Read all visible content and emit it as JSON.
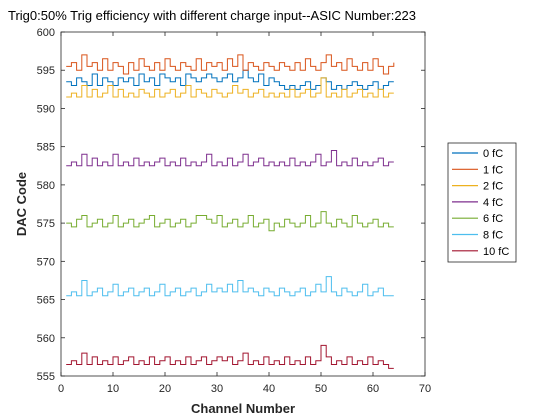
{
  "chart_data": {
    "type": "line",
    "title": "Trig0:50% Trig efficiency with different charge input--ASIC Number:223",
    "xlabel": "Channel Number",
    "ylabel": "DAC Code",
    "xlim": [
      0,
      70
    ],
    "ylim": [
      555,
      600
    ],
    "xticks": [
      "0",
      "10",
      "20",
      "30",
      "40",
      "50",
      "60",
      "70"
    ],
    "yticks": [
      "555",
      "560",
      "565",
      "570",
      "575",
      "580",
      "585",
      "590",
      "595",
      "600"
    ],
    "step": true,
    "channels": 64,
    "legend_position": "right",
    "series": [
      {
        "name": "0 fC",
        "color": "#0072BD",
        "values": [
          593.5,
          593,
          594,
          593.5,
          593,
          594.5,
          593,
          594,
          593.5,
          593,
          594,
          593.5,
          594,
          593,
          594.5,
          593.5,
          594,
          593,
          594.5,
          594,
          593.5,
          594,
          593,
          594.5,
          594,
          593.5,
          594,
          594.5,
          594,
          593.5,
          594,
          594.5,
          593.5,
          594,
          595,
          594,
          593.5,
          594.5,
          593,
          594,
          593.5,
          593,
          592.5,
          593,
          592.5,
          593,
          593.5,
          592.5,
          593,
          594,
          593.5,
          592.5,
          593,
          592.5,
          593,
          593.5,
          593,
          592.5,
          593,
          593.5,
          592.5,
          593,
          593.5,
          593.5
        ]
      },
      {
        "name": "1 fC",
        "color": "#D95319",
        "values": [
          595.5,
          596,
          595,
          597,
          595.5,
          596,
          595,
          596.5,
          595,
          596,
          595.5,
          594.5,
          596,
          595,
          596.5,
          595.5,
          595,
          596,
          595,
          596.5,
          595.5,
          595,
          596,
          595.5,
          595,
          596.5,
          595,
          596,
          595.5,
          596,
          595,
          596.5,
          595.5,
          597,
          595,
          596,
          595.5,
          595,
          596,
          595.5,
          595,
          596,
          595.5,
          595,
          596,
          595,
          596.5,
          595.5,
          595,
          596,
          597,
          595.5,
          596,
          595,
          596.5,
          595.5,
          595,
          596,
          595,
          596.5,
          595.5,
          594.5,
          595.5,
          596
        ]
      },
      {
        "name": "2 fC",
        "color": "#EDB120",
        "values": [
          591.5,
          592,
          591.5,
          593,
          591.5,
          592.5,
          591.5,
          592,
          593,
          591.5,
          592.5,
          591.5,
          592,
          591.5,
          592.5,
          592,
          591.5,
          592.5,
          591.5,
          592,
          592.5,
          591.5,
          592,
          593,
          591.5,
          592.5,
          592,
          591.5,
          592.5,
          592,
          591.5,
          592,
          593,
          592,
          592.5,
          591.5,
          592,
          592.5,
          591.5,
          592,
          591.5,
          592,
          591.5,
          592.5,
          591.5,
          592,
          592.5,
          591.5,
          592,
          594,
          591.5,
          592,
          591.5,
          592.5,
          591.5,
          592,
          592.5,
          591.5,
          592,
          591.5,
          592.5,
          591.5,
          592,
          592
        ]
      },
      {
        "name": "4 fC",
        "color": "#7E2F8E",
        "values": [
          582.5,
          583,
          582.5,
          584,
          582.5,
          583.5,
          582.5,
          583,
          582.5,
          584,
          582.5,
          583,
          582.5,
          583.5,
          582.5,
          583,
          582.5,
          583,
          583.5,
          582.5,
          583,
          582.5,
          583.5,
          582.5,
          583,
          582.5,
          583,
          584,
          582.5,
          583,
          582.5,
          583.5,
          582.5,
          583,
          584,
          582.5,
          583,
          583.5,
          582.5,
          583,
          582.5,
          583,
          582.5,
          583.5,
          582.5,
          583,
          582.5,
          583,
          584,
          582.5,
          583,
          584.5,
          582.5,
          583,
          582.5,
          583.5,
          582.5,
          583,
          582.5,
          583,
          583.5,
          582.5,
          583,
          583
        ]
      },
      {
        "name": "6 fC",
        "color": "#77AC30",
        "values": [
          575,
          574.5,
          575.5,
          576,
          574.5,
          575,
          575.5,
          574.5,
          575,
          576,
          574.5,
          575,
          575.5,
          574.5,
          575,
          575.5,
          576,
          574.5,
          575,
          575.5,
          574.5,
          575,
          575.5,
          574.5,
          575,
          576,
          576,
          575.5,
          575,
          576,
          574.5,
          575,
          575.5,
          574.5,
          575,
          576,
          574.5,
          575,
          575.5,
          574,
          575,
          574.5,
          575.5,
          575,
          574.5,
          575,
          576,
          574.5,
          575,
          576.5,
          575,
          574.5,
          575.5,
          575,
          574.5,
          576,
          575,
          574.5,
          575,
          575.5,
          574.5,
          575,
          574.5,
          574.5
        ]
      },
      {
        "name": "8 fC",
        "color": "#4DBEEE",
        "values": [
          565.5,
          566,
          565.5,
          567.5,
          565.5,
          566,
          566.5,
          565.5,
          566,
          567,
          565.5,
          566,
          566.5,
          565.5,
          566,
          566.5,
          565.5,
          566,
          567,
          565.5,
          566,
          566.5,
          565.5,
          566,
          566.5,
          565.5,
          566,
          567,
          566,
          566.5,
          566,
          567,
          566,
          567.5,
          566,
          566.5,
          566,
          565.5,
          566.5,
          566,
          565.5,
          566.5,
          566,
          565.5,
          566,
          566.5,
          565.5,
          566,
          567,
          566,
          568,
          566,
          565.5,
          566.5,
          566,
          565.5,
          566,
          567,
          565.5,
          566,
          566.5,
          565.5,
          565.5,
          565.5
        ]
      },
      {
        "name": "10 fC",
        "color": "#A2142F",
        "values": [
          556.5,
          557,
          556.5,
          558,
          556.5,
          557.5,
          556.5,
          557,
          556.5,
          557.5,
          556.5,
          557,
          557.5,
          556.5,
          557,
          556.5,
          557.5,
          556.5,
          557,
          557.5,
          556.5,
          557,
          556.5,
          557.5,
          556.5,
          557,
          557.5,
          556.5,
          557,
          557.5,
          557,
          557.5,
          556.5,
          557,
          558,
          556.5,
          557,
          556.5,
          557.5,
          556.5,
          557,
          556.5,
          557.5,
          556.5,
          557,
          556.5,
          557.5,
          556.5,
          557,
          559,
          557.5,
          556.5,
          557,
          556.5,
          557.5,
          556.5,
          557,
          556.5,
          557.5,
          556.5,
          557,
          556.5,
          556,
          556
        ]
      }
    ]
  }
}
